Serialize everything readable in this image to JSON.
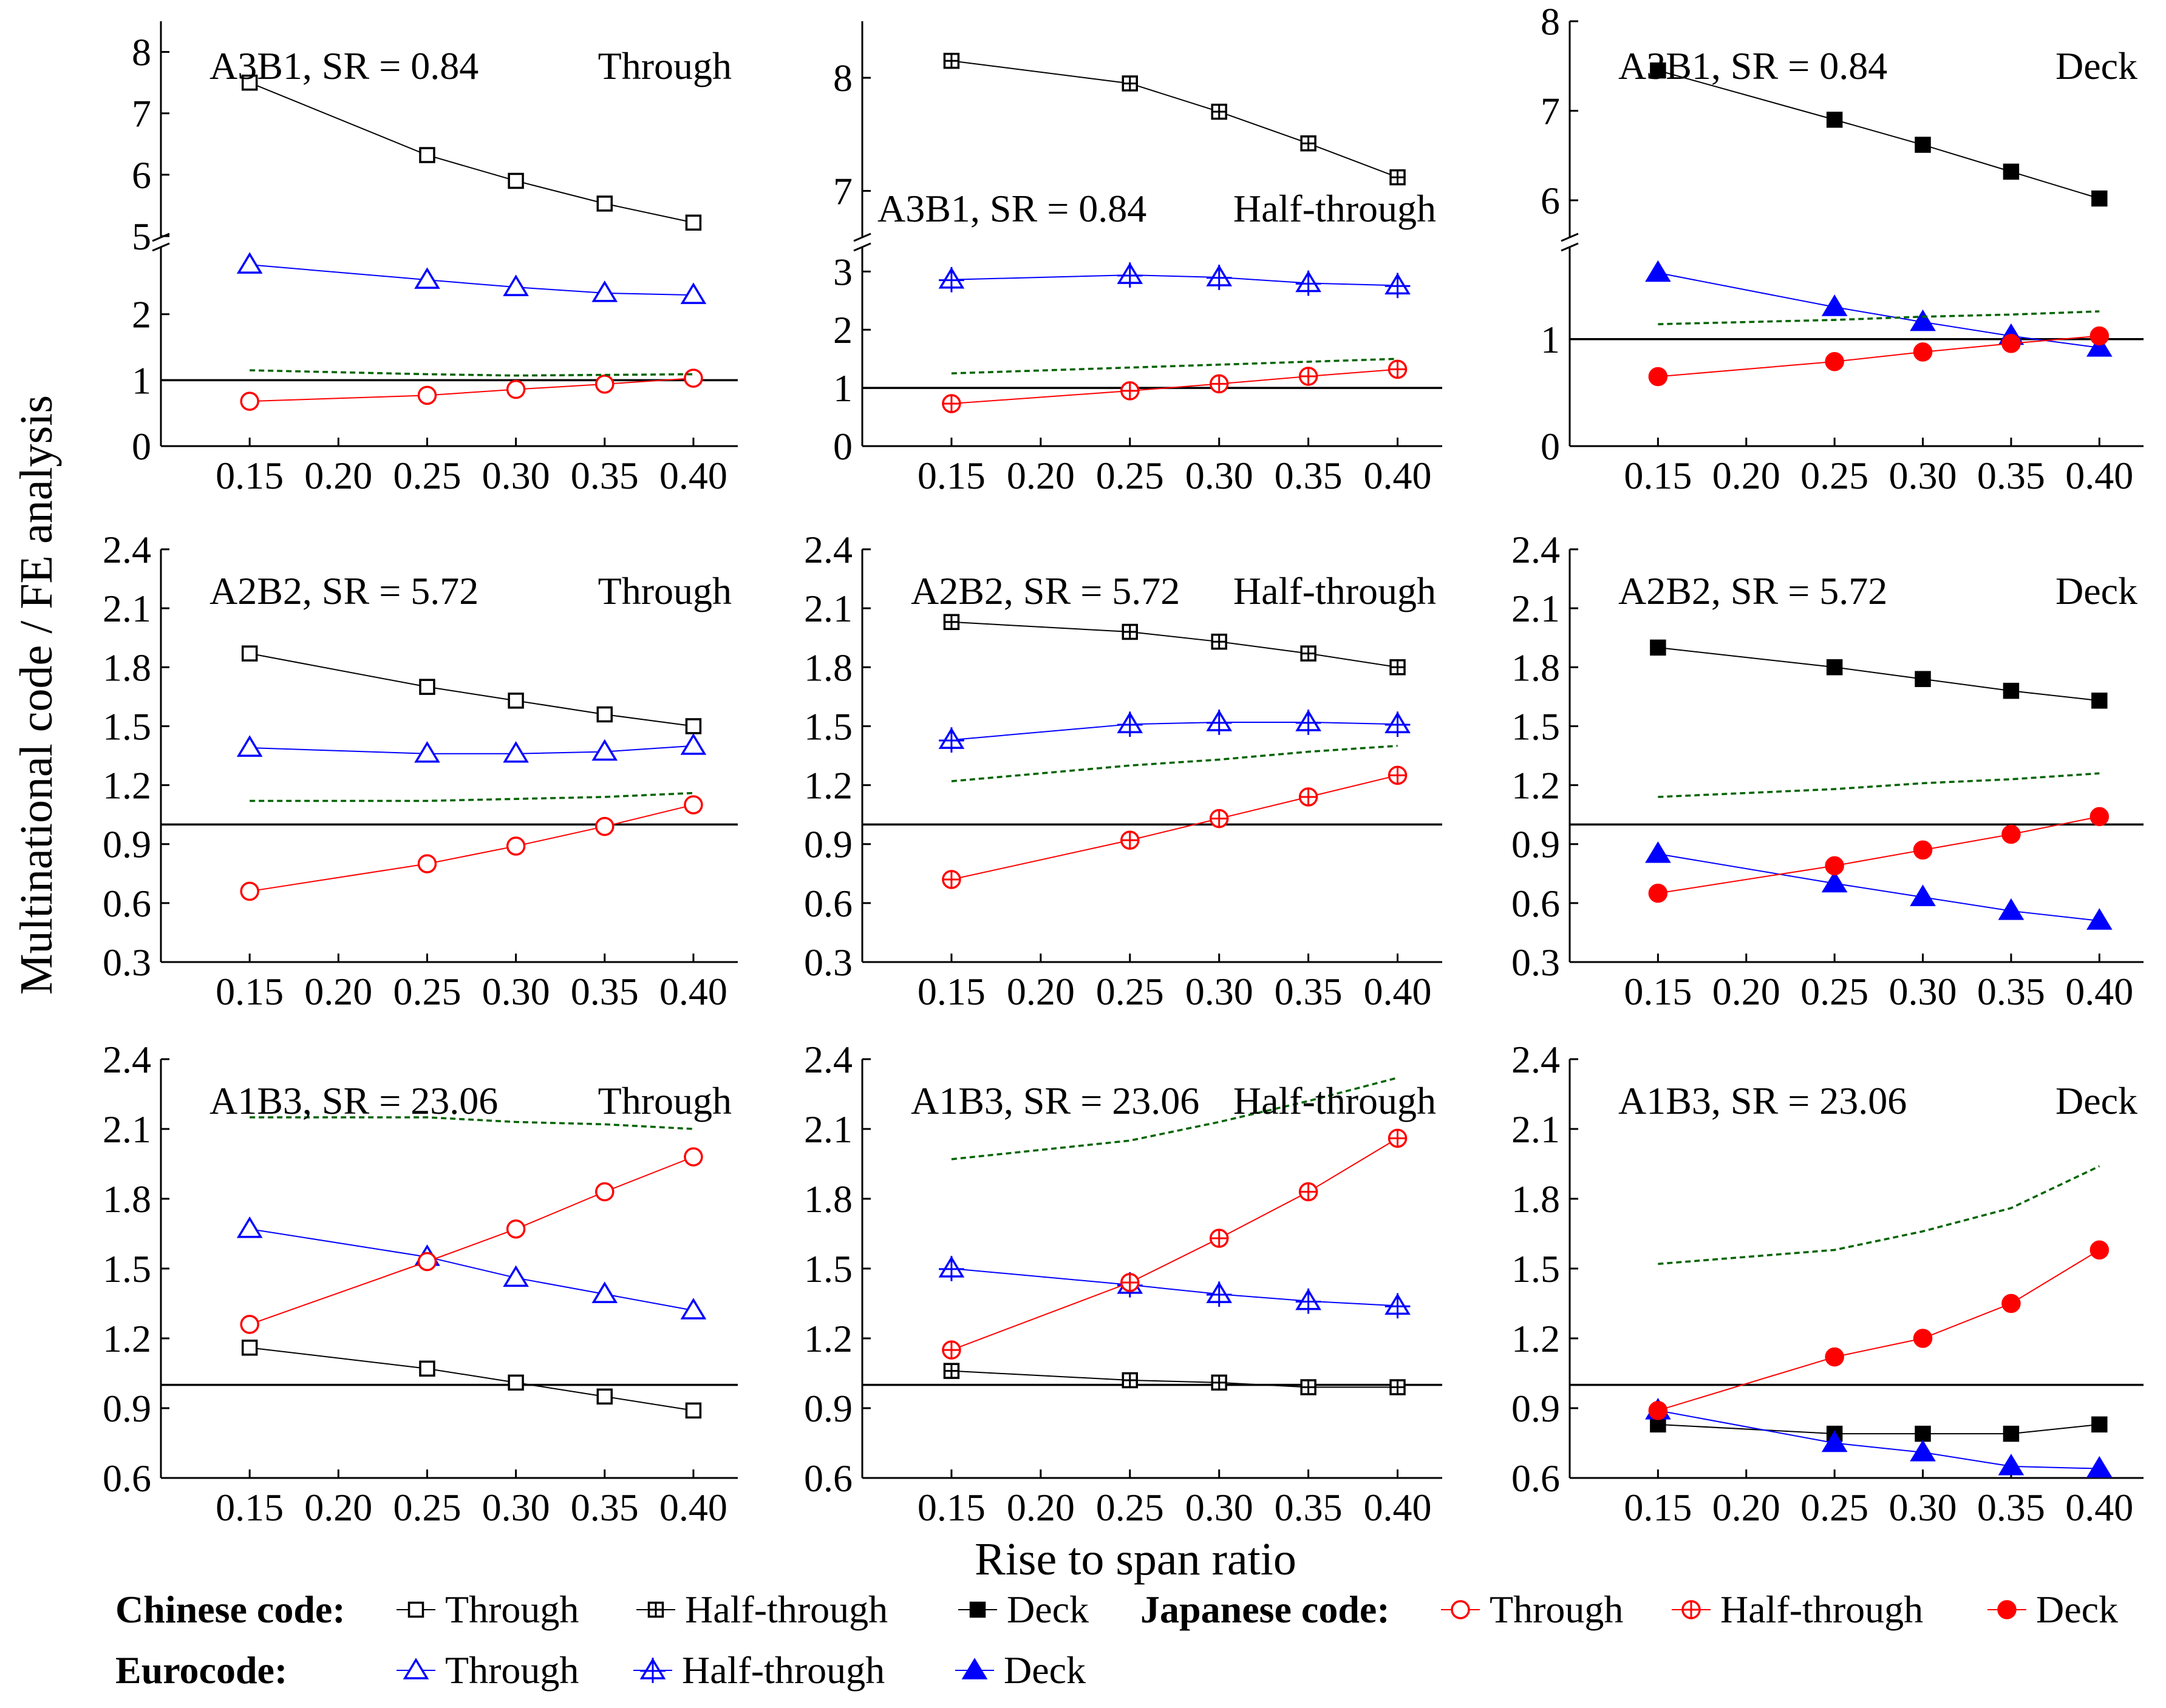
{
  "figure": {
    "ylabel": "Multinational code / FE analysis",
    "xlabel": "Rise to span ratio"
  },
  "legend": {
    "chinese_label": "Chinese code:",
    "japanese_label": "Japanese code:",
    "eurocode_label": "Eurocode:",
    "through": "Through",
    "half_through": "Half-through",
    "deck": "Deck"
  },
  "chart_data": [
    {
      "type": "line",
      "row": 0,
      "col": 0,
      "case": "A3B1, SR = 0.84",
      "bridge": "Through",
      "x": [
        0.15,
        0.25,
        0.3,
        0.35,
        0.4
      ],
      "xticks": [
        "0.15",
        "0.20",
        "0.25",
        "0.30",
        "0.35",
        "0.40"
      ],
      "broken_axis": true,
      "ylim_lower": [
        0,
        3
      ],
      "yticks_lower": [
        "0",
        "1",
        "2"
      ],
      "ylim_upper": [
        5,
        8.5
      ],
      "yticks_upper": [
        "5",
        "6",
        "7",
        "8"
      ],
      "series": [
        {
          "name": "Chinese code Through",
          "marker": "open-square",
          "color": "#000000",
          "values": [
            7.5,
            6.32,
            5.9,
            5.53,
            5.22
          ]
        },
        {
          "name": "Eurocode Through",
          "marker": "open-triangle",
          "color": "#0000ff",
          "values": [
            2.75,
            2.52,
            2.41,
            2.32,
            2.29
          ]
        },
        {
          "name": "Japanese code Through",
          "marker": "open-circle",
          "color": "#ff0000",
          "values": [
            0.68,
            0.77,
            0.86,
            0.94,
            1.03
          ]
        },
        {
          "name": "dashed",
          "style": "dashed",
          "color": "#006400",
          "values": [
            1.15,
            1.09,
            1.07,
            1.08,
            1.09
          ]
        }
      ]
    },
    {
      "type": "line",
      "row": 0,
      "col": 1,
      "case": "A3B1, SR = 0.84",
      "bridge": "Half-through",
      "x": [
        0.15,
        0.25,
        0.3,
        0.35,
        0.4
      ],
      "xticks": [
        "0.15",
        "0.20",
        "0.25",
        "0.30",
        "0.35",
        "0.40"
      ],
      "broken_axis": true,
      "ylim_lower": [
        0,
        3.4
      ],
      "yticks_lower": [
        "0",
        "1",
        "2",
        "3"
      ],
      "ylim_upper": [
        6.6,
        8.5
      ],
      "yticks_upper": [
        "7",
        "8"
      ],
      "series": [
        {
          "name": "Chinese code Half-through",
          "marker": "crossed-square",
          "color": "#000000",
          "values": [
            8.15,
            7.95,
            7.7,
            7.42,
            7.12
          ]
        },
        {
          "name": "Eurocode Half-through",
          "marker": "crossed-triangle",
          "color": "#0000ff",
          "values": [
            2.86,
            2.94,
            2.9,
            2.8,
            2.76
          ]
        },
        {
          "name": "Japanese code Half-through",
          "marker": "crossed-circle",
          "color": "#ff0000",
          "values": [
            0.73,
            0.95,
            1.07,
            1.2,
            1.32
          ]
        },
        {
          "name": "dashed",
          "style": "dashed",
          "color": "#006400",
          "values": [
            1.25,
            1.35,
            1.4,
            1.45,
            1.5
          ]
        }
      ]
    },
    {
      "type": "line",
      "row": 0,
      "col": 2,
      "case": "A3B1, SR = 0.84",
      "bridge": "Deck",
      "x": [
        0.15,
        0.25,
        0.3,
        0.35,
        0.4
      ],
      "xticks": [
        "0.15",
        "0.20",
        "0.25",
        "0.30",
        "0.35",
        "0.40"
      ],
      "broken_axis": true,
      "ylim_lower": [
        0,
        1.85
      ],
      "yticks_lower": [
        "0",
        "1"
      ],
      "ylim_upper": [
        5.6,
        8
      ],
      "yticks_upper": [
        "6",
        "7",
        "8"
      ],
      "series": [
        {
          "name": "Chinese code Deck",
          "marker": "filled-square",
          "color": "#000000",
          "values": [
            7.45,
            6.9,
            6.62,
            6.32,
            6.02
          ]
        },
        {
          "name": "Eurocode Deck",
          "marker": "filled-triangle",
          "color": "#0000ff",
          "values": [
            1.62,
            1.3,
            1.16,
            1.03,
            0.92
          ]
        },
        {
          "name": "Japanese code Deck",
          "marker": "filled-circle",
          "color": "#ff0000",
          "values": [
            0.65,
            0.79,
            0.88,
            0.96,
            1.03
          ]
        },
        {
          "name": "dashed",
          "style": "dashed",
          "color": "#006400",
          "values": [
            1.14,
            1.18,
            1.21,
            1.23,
            1.26
          ]
        }
      ]
    },
    {
      "type": "line",
      "row": 1,
      "col": 0,
      "case": "A2B2, SR = 5.72",
      "bridge": "Through",
      "x": [
        0.15,
        0.25,
        0.3,
        0.35,
        0.4
      ],
      "xticks": [
        "0.15",
        "0.20",
        "0.25",
        "0.30",
        "0.35",
        "0.40"
      ],
      "ylim": [
        0.3,
        2.4
      ],
      "yticks": [
        "0.3",
        "0.6",
        "0.9",
        "1.2",
        "1.5",
        "1.8",
        "2.1",
        "2.4"
      ],
      "series": [
        {
          "name": "Chinese code Through",
          "marker": "open-square",
          "color": "#000000",
          "values": [
            1.87,
            1.7,
            1.63,
            1.56,
            1.5
          ]
        },
        {
          "name": "Eurocode Through",
          "marker": "open-triangle",
          "color": "#0000ff",
          "values": [
            1.39,
            1.36,
            1.36,
            1.37,
            1.4
          ]
        },
        {
          "name": "Japanese code Through",
          "marker": "open-circle",
          "color": "#ff0000",
          "values": [
            0.66,
            0.8,
            0.89,
            0.99,
            1.1
          ]
        },
        {
          "name": "dashed",
          "style": "dashed",
          "color": "#006400",
          "values": [
            1.12,
            1.12,
            1.13,
            1.14,
            1.16
          ]
        }
      ]
    },
    {
      "type": "line",
      "row": 1,
      "col": 1,
      "case": "A2B2, SR = 5.72",
      "bridge": "Half-through",
      "x": [
        0.15,
        0.25,
        0.3,
        0.35,
        0.4
      ],
      "xticks": [
        "0.15",
        "0.20",
        "0.25",
        "0.30",
        "0.35",
        "0.40"
      ],
      "ylim": [
        0.3,
        2.4
      ],
      "yticks": [
        "0.3",
        "0.6",
        "0.9",
        "1.2",
        "1.5",
        "1.8",
        "2.1",
        "2.4"
      ],
      "series": [
        {
          "name": "Chinese code Half-through",
          "marker": "crossed-square",
          "color": "#000000",
          "values": [
            2.03,
            1.98,
            1.93,
            1.87,
            1.8
          ]
        },
        {
          "name": "Eurocode Half-through",
          "marker": "crossed-triangle",
          "color": "#0000ff",
          "values": [
            1.43,
            1.51,
            1.52,
            1.52,
            1.51
          ]
        },
        {
          "name": "Japanese code Half-through",
          "marker": "crossed-circle",
          "color": "#ff0000",
          "values": [
            0.72,
            0.92,
            1.03,
            1.14,
            1.25
          ]
        },
        {
          "name": "dashed",
          "style": "dashed",
          "color": "#006400",
          "values": [
            1.22,
            1.3,
            1.33,
            1.37,
            1.4
          ]
        }
      ]
    },
    {
      "type": "line",
      "row": 1,
      "col": 2,
      "case": "A2B2, SR = 5.72",
      "bridge": "Deck",
      "x": [
        0.15,
        0.25,
        0.3,
        0.35,
        0.4
      ],
      "xticks": [
        "0.15",
        "0.20",
        "0.25",
        "0.30",
        "0.35",
        "0.40"
      ],
      "ylim": [
        0.3,
        2.4
      ],
      "yticks": [
        "0.3",
        "0.6",
        "0.9",
        "1.2",
        "1.5",
        "1.8",
        "2.1",
        "2.4"
      ],
      "series": [
        {
          "name": "Chinese code Deck",
          "marker": "filled-square",
          "color": "#000000",
          "values": [
            1.9,
            1.8,
            1.74,
            1.68,
            1.63
          ]
        },
        {
          "name": "Eurocode Deck",
          "marker": "filled-triangle",
          "color": "#0000ff",
          "values": [
            0.85,
            0.7,
            0.63,
            0.56,
            0.51
          ]
        },
        {
          "name": "Japanese code Deck",
          "marker": "filled-circle",
          "color": "#ff0000",
          "values": [
            0.65,
            0.79,
            0.87,
            0.95,
            1.04
          ]
        },
        {
          "name": "dashed",
          "style": "dashed",
          "color": "#006400",
          "values": [
            1.14,
            1.18,
            1.21,
            1.23,
            1.26
          ]
        }
      ]
    },
    {
      "type": "line",
      "row": 2,
      "col": 0,
      "case": "A1B3, SR = 23.06",
      "bridge": "Through",
      "x": [
        0.15,
        0.25,
        0.3,
        0.35,
        0.4
      ],
      "xticks": [
        "0.15",
        "0.20",
        "0.25",
        "0.30",
        "0.35",
        "0.40"
      ],
      "ylim": [
        0.6,
        2.4
      ],
      "yticks": [
        "0.6",
        "0.9",
        "1.2",
        "1.5",
        "1.8",
        "2.1",
        "2.4"
      ],
      "series": [
        {
          "name": "Chinese code Through",
          "marker": "open-square",
          "color": "#000000",
          "values": [
            1.16,
            1.07,
            1.01,
            0.95,
            0.89
          ]
        },
        {
          "name": "Eurocode Through",
          "marker": "open-triangle",
          "color": "#0000ff",
          "values": [
            1.67,
            1.55,
            1.46,
            1.39,
            1.32
          ]
        },
        {
          "name": "Japanese code Through",
          "marker": "open-circle",
          "color": "#ff0000",
          "values": [
            1.26,
            1.53,
            1.67,
            1.83,
            1.98
          ]
        },
        {
          "name": "dashed",
          "style": "dashed",
          "color": "#006400",
          "values": [
            2.15,
            2.15,
            2.13,
            2.12,
            2.1
          ]
        }
      ]
    },
    {
      "type": "line",
      "row": 2,
      "col": 1,
      "case": "A1B3, SR = 23.06",
      "bridge": "Half-through",
      "x": [
        0.15,
        0.25,
        0.3,
        0.35,
        0.4
      ],
      "xticks": [
        "0.15",
        "0.20",
        "0.25",
        "0.30",
        "0.35",
        "0.40"
      ],
      "ylim": [
        0.6,
        2.4
      ],
      "yticks": [
        "0.6",
        "0.9",
        "1.2",
        "1.5",
        "1.8",
        "2.1",
        "2.4"
      ],
      "series": [
        {
          "name": "Chinese code Half-through",
          "marker": "crossed-square",
          "color": "#000000",
          "values": [
            1.06,
            1.02,
            1.01,
            0.99,
            0.99
          ]
        },
        {
          "name": "Eurocode Half-through",
          "marker": "crossed-triangle",
          "color": "#0000ff",
          "values": [
            1.5,
            1.43,
            1.39,
            1.36,
            1.34
          ]
        },
        {
          "name": "Japanese code Half-through",
          "marker": "crossed-circle",
          "color": "#ff0000",
          "values": [
            1.15,
            1.44,
            1.63,
            1.83,
            2.06
          ]
        },
        {
          "name": "dashed",
          "style": "dashed",
          "color": "#006400",
          "values": [
            1.97,
            2.05,
            2.13,
            2.22,
            2.32
          ]
        }
      ]
    },
    {
      "type": "line",
      "row": 2,
      "col": 2,
      "case": "A1B3, SR = 23.06",
      "bridge": "Deck",
      "x": [
        0.15,
        0.25,
        0.3,
        0.35,
        0.4
      ],
      "xticks": [
        "0.15",
        "0.20",
        "0.25",
        "0.30",
        "0.35",
        "0.40"
      ],
      "ylim": [
        0.6,
        2.4
      ],
      "yticks": [
        "0.6",
        "0.9",
        "1.2",
        "1.5",
        "1.8",
        "2.1",
        "2.4"
      ],
      "series": [
        {
          "name": "Chinese code Deck",
          "marker": "filled-square",
          "color": "#000000",
          "values": [
            0.83,
            0.79,
            0.79,
            0.79,
            0.83
          ]
        },
        {
          "name": "Eurocode Deck",
          "marker": "filled-triangle",
          "color": "#0000ff",
          "values": [
            0.89,
            0.75,
            0.71,
            0.65,
            0.64
          ]
        },
        {
          "name": "Japanese code Deck",
          "marker": "filled-circle",
          "color": "#ff0000",
          "values": [
            0.89,
            1.12,
            1.2,
            1.35,
            1.58
          ]
        },
        {
          "name": "dashed",
          "style": "dashed",
          "color": "#006400",
          "values": [
            1.52,
            1.58,
            1.66,
            1.76,
            1.94
          ]
        }
      ]
    }
  ]
}
